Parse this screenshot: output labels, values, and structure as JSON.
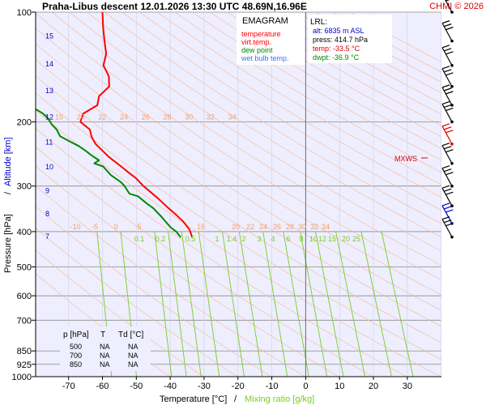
{
  "header": {
    "title": "Praha-Libus   descent   12.01.2026 13:30 UTC   48.69N,16.96E",
    "credit": "CHMI © 2026"
  },
  "legend": {
    "title": "EMAGRAM",
    "items": [
      {
        "label": "temperature",
        "color": "#ff0000"
      },
      {
        "label": "virt.temp.",
        "color": "#ff0000"
      },
      {
        "label": "dew point",
        "color": "#008800"
      },
      {
        "label": "wet bulb temp.",
        "color": "#3377ff"
      }
    ]
  },
  "lrl": {
    "title": "LRL:",
    "alt": "alt: 6835 m ASL",
    "press": "press: 414.7 hPa",
    "temp": "temp: -33.5 °C",
    "dwpt": "dwpt: -36.9 °C"
  },
  "mxws_label": "MXWS",
  "table": {
    "headers": [
      "p [hPa]",
      "T",
      "Td [°C]"
    ],
    "rows": [
      [
        "500",
        "NA",
        "NA"
      ],
      [
        "700",
        "NA",
        "NA"
      ],
      [
        "850",
        "NA",
        "NA"
      ]
    ]
  },
  "colors": {
    "temperature": "#ff0000",
    "dewpoint": "#008800",
    "altitude_axis": "#0000cc",
    "mixing_ratio": "#7acc22",
    "adiabat": "#f0a070",
    "plot_bg": "#eeeeff"
  },
  "chart_data": {
    "type": "line",
    "x_axis_label": "Temperature [°C]",
    "x_axis_label_2": "Mixing ratio [g/kg]",
    "y_axis_label": "Pressure [hPa]",
    "y_axis_label_2": "Altitude [km]",
    "y_scale": "log",
    "xlim": [
      -84,
      40
    ],
    "ylim": [
      1000,
      100
    ],
    "x_ticks": [
      "-70",
      "-60",
      "-50",
      "-40",
      "-30",
      "-20",
      "-10",
      "0",
      "10",
      "20",
      "30"
    ],
    "y_ticks": [
      "100",
      "200",
      "300",
      "400",
      "500",
      "600",
      "700",
      "850",
      "925",
      "1000"
    ],
    "altitude_ticks_km": [
      "7",
      "8",
      "9",
      "10",
      "11",
      "12",
      "13",
      "14",
      "15"
    ],
    "isotherm_labels_200": [
      "15",
      "20",
      "22",
      "24",
      "26",
      "28",
      "30",
      "32",
      "34"
    ],
    "isotherm_labels_400": [
      "-10",
      "-5",
      "0",
      "5",
      "15",
      "20",
      "22",
      "24",
      "26",
      "28",
      "30",
      "32",
      "34"
    ],
    "mixing_ratio_labels": [
      "0.1",
      "0.2",
      "0.5",
      "1",
      "1.4",
      "2",
      "3",
      "4",
      "6",
      "8",
      "10",
      "12",
      "15",
      "20",
      "25"
    ],
    "series": [
      {
        "name": "temperature",
        "points": [
          [
            -60.0,
            100
          ],
          [
            -59.8,
            110
          ],
          [
            -59.4,
            120
          ],
          [
            -58.9,
            130
          ],
          [
            -59.7,
            140
          ],
          [
            -58.1,
            150
          ],
          [
            -58.0,
            160
          ],
          [
            -61.0,
            170
          ],
          [
            -61.5,
            180
          ],
          [
            -65.7,
            190
          ],
          [
            -66.5,
            200
          ],
          [
            -63.7,
            210
          ],
          [
            -63.2,
            220
          ],
          [
            -62.0,
            230
          ],
          [
            -60.0,
            240
          ],
          [
            -58.0,
            250
          ],
          [
            -54.5,
            265
          ],
          [
            -52.4,
            275
          ],
          [
            -50.2,
            285
          ],
          [
            -47.9,
            300
          ],
          [
            -43.5,
            325
          ],
          [
            -40.5,
            345
          ],
          [
            -38.2,
            360
          ],
          [
            -36.2,
            375
          ],
          [
            -34.3,
            395
          ],
          [
            -33.5,
            414.7
          ]
        ]
      },
      {
        "name": "dew point",
        "points": [
          [
            -84.0,
            178
          ],
          [
            -79.5,
            185
          ],
          [
            -77.5,
            190
          ],
          [
            -76.0,
            196
          ],
          [
            -75.0,
            203
          ],
          [
            -73.5,
            210
          ],
          [
            -72.5,
            219
          ],
          [
            -69.8,
            226
          ],
          [
            -67.0,
            233
          ],
          [
            -65.0,
            240
          ],
          [
            -63.0,
            248
          ],
          [
            -61.0,
            255
          ],
          [
            -62.4,
            260
          ],
          [
            -59.8,
            265
          ],
          [
            -57.5,
            280
          ],
          [
            -54.5,
            293
          ],
          [
            -53.5,
            300
          ],
          [
            -52.0,
            315
          ],
          [
            -49.5,
            320
          ],
          [
            -46.9,
            335
          ],
          [
            -45.0,
            345
          ],
          [
            -42.5,
            365
          ],
          [
            -40.9,
            380
          ],
          [
            -39.8,
            390
          ],
          [
            -38.2,
            400
          ],
          [
            -36.9,
            414.7
          ]
        ]
      }
    ],
    "winds_hpa": [
      100,
      120,
      140,
      160,
      180,
      200,
      230,
      260,
      300,
      340,
      380,
      414
    ]
  }
}
